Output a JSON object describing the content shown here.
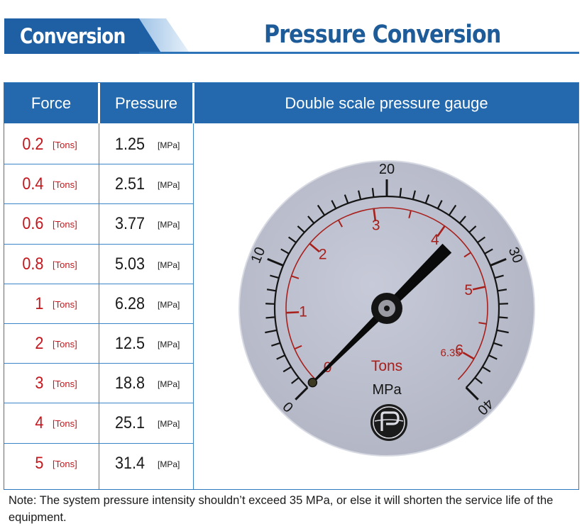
{
  "header": {
    "tab_label": "Conversion",
    "title": "Pressure Conversion"
  },
  "table": {
    "headers": {
      "force": "Force",
      "pressure": "Pressure",
      "gauge": "Double scale pressure gauge"
    },
    "rows": [
      {
        "force": "0.2",
        "force_unit": "[Tons]",
        "pressure": "1.25",
        "pressure_unit": "[MPa]"
      },
      {
        "force": "0.4",
        "force_unit": "[Tons]",
        "pressure": "2.51",
        "pressure_unit": "[MPa]"
      },
      {
        "force": "0.6",
        "force_unit": "[Tons]",
        "pressure": "3.77",
        "pressure_unit": "[MPa]"
      },
      {
        "force": "0.8",
        "force_unit": "[Tons]",
        "pressure": "5.03",
        "pressure_unit": "[MPa]"
      },
      {
        "force": "1",
        "force_unit": "[Tons]",
        "pressure": "6.28",
        "pressure_unit": "[MPa]"
      },
      {
        "force": "2",
        "force_unit": "[Tons]",
        "pressure": "12.5",
        "pressure_unit": "[MPa]"
      },
      {
        "force": "3",
        "force_unit": "[Tons]",
        "pressure": "18.8",
        "pressure_unit": "[MPa]"
      },
      {
        "force": "4",
        "force_unit": "[Tons]",
        "pressure": "25.1",
        "pressure_unit": "[MPa]"
      },
      {
        "force": "5",
        "force_unit": "[Tons]",
        "pressure": "31.4",
        "pressure_unit": "[MPa]"
      }
    ]
  },
  "gauge": {
    "outer_scale": {
      "unit": "MPa",
      "labels": [
        "0",
        "10",
        "20",
        "30",
        "40"
      ],
      "min": 0,
      "max": 40
    },
    "inner_scale": {
      "unit": "Tons",
      "labels": [
        "0",
        "1",
        "2",
        "3",
        "4",
        "5",
        "6"
      ],
      "end_label": "6.35",
      "max": 6.35
    },
    "needle_reading_mpa": 0,
    "colors": {
      "dial_face": "#babdcc",
      "outer_marks": "#151515",
      "inner_marks": "#a8201c",
      "needle": "#0a0a0a"
    }
  },
  "note": {
    "label": "Note:",
    "body": "The system pressure intensity shouldn’t exceed 35 MPa, or else it will shorten the service life of the equipment."
  },
  "colors": {
    "header_blue": "#2469ad",
    "title_blue": "#1e5c99",
    "force_red": "#c4161c"
  }
}
